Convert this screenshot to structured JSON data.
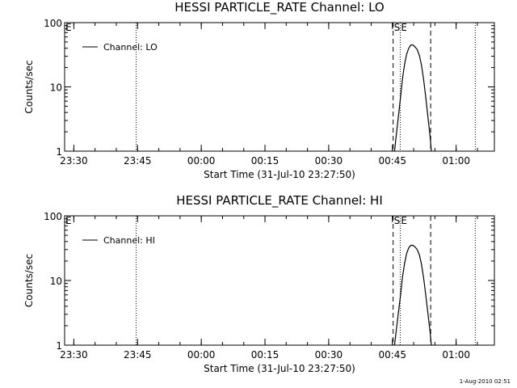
{
  "timestamp": "1-Aug-2010 02:51",
  "chart_data": [
    {
      "type": "line",
      "title": "HESSI PARTICLE_RATE Channel: LO",
      "ylabel": "Counts/sec",
      "xlabel": "Start Time (31-Jul-10 23:27:50)",
      "yscale": "log",
      "ylim": [
        1,
        100
      ],
      "y_ticks": [
        "1",
        "10",
        "100"
      ],
      "xlim": [
        "23:27:50",
        "01:09:00"
      ],
      "x_ticks": [
        "23:30",
        "23:45",
        "00:00",
        "00:15",
        "00:30",
        "00:45",
        "01:00"
      ],
      "legend": "Channel: LO",
      "legend_position": "top-left",
      "grid": false,
      "dotted_markers": [
        "23:44:40",
        "01:04:30"
      ],
      "dashed_markers": [
        "00:45:10",
        "00:54:00"
      ],
      "event_marker_dotted": "00:46:50",
      "marker_labels": [
        "E",
        "S",
        "E"
      ],
      "series": [
        {
          "x": [
            "00:45:30",
            "00:45:55",
            "00:46:25",
            "00:46:55",
            "00:47:20",
            "00:47:50",
            "00:48:20",
            "00:48:50",
            "00:49:20",
            "00:49:50",
            "00:50:20",
            "00:50:50",
            "00:51:20",
            "00:51:50",
            "00:52:20",
            "00:52:50",
            "00:53:20",
            "00:53:50",
            "00:54:10"
          ],
          "y": [
            1,
            1.8,
            3.5,
            7,
            13,
            22,
            32,
            40,
            45,
            45,
            42,
            38,
            31,
            22,
            13,
            7,
            3.5,
            1.8,
            1
          ]
        }
      ]
    },
    {
      "type": "line",
      "title": "HESSI PARTICLE_RATE Channel: HI",
      "ylabel": "Counts/sec",
      "xlabel": "Start Time (31-Jul-10 23:27:50)",
      "yscale": "log",
      "ylim": [
        1,
        100
      ],
      "y_ticks": [
        "1",
        "10",
        "100"
      ],
      "xlim": [
        "23:27:50",
        "01:09:00"
      ],
      "x_ticks": [
        "23:30",
        "23:45",
        "00:00",
        "00:15",
        "00:30",
        "00:45",
        "01:00"
      ],
      "legend": "Channel: HI",
      "legend_position": "top-left",
      "grid": false,
      "dotted_markers": [
        "23:44:40",
        "01:04:30"
      ],
      "dashed_markers": [
        "00:45:10",
        "00:54:00"
      ],
      "event_marker_dotted": "00:46:50",
      "marker_labels": [
        "E",
        "S",
        "E"
      ],
      "series": [
        {
          "x": [
            "00:45:30",
            "00:45:55",
            "00:46:25",
            "00:46:55",
            "00:47:20",
            "00:47:50",
            "00:48:20",
            "00:48:50",
            "00:49:20",
            "00:49:50",
            "00:50:20",
            "00:50:50",
            "00:51:20",
            "00:51:50",
            "00:52:20",
            "00:52:50",
            "00:53:20",
            "00:53:50",
            "00:54:10"
          ],
          "y": [
            1,
            1.7,
            3.2,
            6,
            11,
            18,
            26,
            32,
            35,
            35,
            33,
            30,
            25,
            18,
            11,
            6,
            3.2,
            1.7,
            1
          ]
        }
      ]
    }
  ]
}
